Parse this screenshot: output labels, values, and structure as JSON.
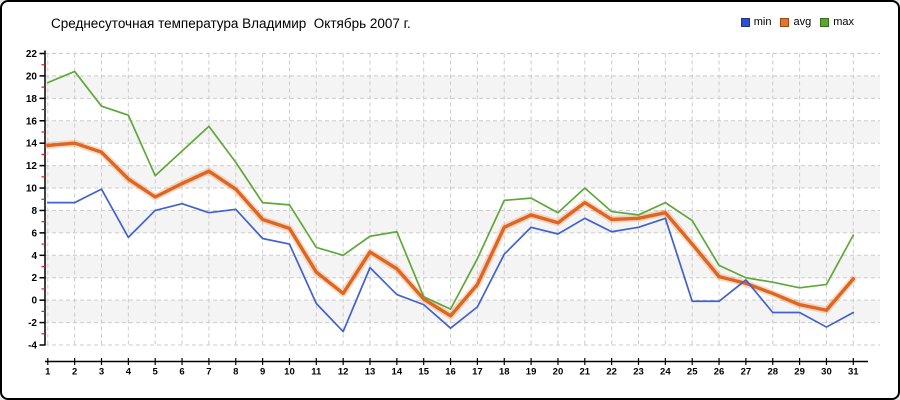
{
  "title": "Среднесуточная температура Владимир  Октябрь 2007 г.",
  "legend": [
    {
      "label": "min",
      "color": "#2f4ed0"
    },
    {
      "label": "avg",
      "color": "#e8732a"
    },
    {
      "label": "max",
      "color": "#58a82e"
    }
  ],
  "colors": {
    "background": "#ffffff",
    "border": "#000000",
    "band": "#f4f4f4",
    "grid": "#cccccc",
    "axis": "#000000",
    "minor_tick": "#cc2222",
    "tick_label": "#000000"
  },
  "chart_data": {
    "type": "line",
    "title": "Среднесуточная температура Владимир  Октябрь 2007 г.",
    "xlabel": "",
    "ylabel": "",
    "x": [
      1,
      2,
      3,
      4,
      5,
      6,
      7,
      8,
      9,
      10,
      11,
      12,
      13,
      14,
      15,
      16,
      17,
      18,
      19,
      20,
      21,
      22,
      23,
      24,
      25,
      26,
      27,
      28,
      29,
      30,
      31
    ],
    "series": [
      {
        "name": "min",
        "color": "#4161cf",
        "line_width": 1.7,
        "values": [
          8.7,
          8.7,
          9.9,
          5.6,
          8.0,
          8.6,
          7.8,
          8.1,
          5.5,
          5.0,
          -0.3,
          -2.8,
          2.9,
          0.5,
          -0.4,
          -2.5,
          -0.6,
          4.1,
          6.5,
          5.9,
          7.3,
          6.1,
          6.5,
          7.3,
          -0.1,
          -0.1,
          1.8,
          -1.1,
          -1.1,
          -2.4,
          -1.1
        ]
      },
      {
        "name": "avg",
        "color": "#e0661e",
        "line_width": 3.4,
        "halo": true,
        "values": [
          13.8,
          14.0,
          13.2,
          10.8,
          9.2,
          10.4,
          11.5,
          9.9,
          7.2,
          6.4,
          2.5,
          0.6,
          4.3,
          2.8,
          0.1,
          -1.4,
          1.4,
          6.5,
          7.6,
          6.9,
          8.7,
          7.2,
          7.3,
          7.8,
          5.0,
          2.1,
          1.5,
          0.6,
          -0.4,
          -0.9,
          1.9
        ]
      },
      {
        "name": "max",
        "color": "#5fa839",
        "line_width": 1.7,
        "values": [
          19.4,
          20.4,
          17.3,
          16.5,
          11.1,
          13.3,
          15.5,
          12.3,
          8.7,
          8.5,
          4.7,
          4.0,
          5.7,
          6.1,
          0.3,
          -0.8,
          3.7,
          8.9,
          9.1,
          7.8,
          10.0,
          7.9,
          7.6,
          8.7,
          7.1,
          3.1,
          2.0,
          1.6,
          1.1,
          1.4,
          5.8
        ]
      }
    ],
    "ylim": [
      -4,
      22
    ],
    "ytick_step": 2,
    "y_ticks": [
      22,
      20,
      18,
      16,
      14,
      12,
      10,
      8,
      6,
      4,
      2,
      0,
      -2,
      -4
    ],
    "x_ticks": [
      1,
      2,
      3,
      4,
      5,
      6,
      7,
      8,
      9,
      10,
      11,
      12,
      13,
      14,
      15,
      16,
      17,
      18,
      19,
      20,
      21,
      22,
      23,
      24,
      25,
      26,
      27,
      28,
      29,
      30,
      31
    ],
    "grid": true,
    "legend_position": "top-right"
  }
}
